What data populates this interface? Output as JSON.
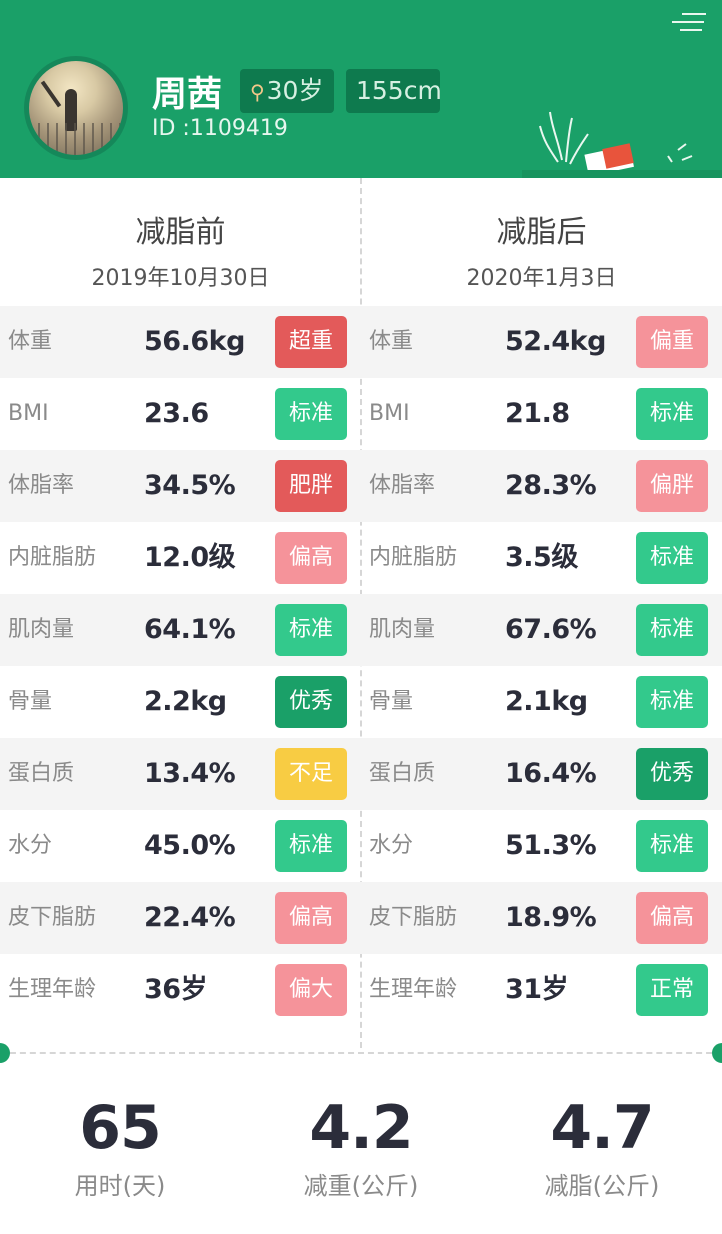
{
  "profile": {
    "name": "周茜",
    "age": "30岁",
    "height": "155cm",
    "id": "ID :1109419"
  },
  "before": {
    "title": "减脂前",
    "date": "2019年10月30日"
  },
  "after": {
    "title": "减脂后",
    "date": "2020年1月3日"
  },
  "rows": [
    {
      "metric": "体重",
      "before": {
        "value": "56.6kg",
        "status": "超重",
        "level": "red"
      },
      "after": {
        "value": "52.4kg",
        "status": "偏重",
        "level": "pink"
      }
    },
    {
      "metric": "BMI",
      "before": {
        "value": "23.6",
        "status": "标准",
        "level": "green"
      },
      "after": {
        "value": "21.8",
        "status": "标准",
        "level": "green"
      }
    },
    {
      "metric": "体脂率",
      "before": {
        "value": "34.5%",
        "status": "肥胖",
        "level": "red"
      },
      "after": {
        "value": "28.3%",
        "status": "偏胖",
        "level": "pink"
      }
    },
    {
      "metric": "内脏脂肪",
      "before": {
        "value": "12.0级",
        "status": "偏高",
        "level": "pink"
      },
      "after": {
        "value": "3.5级",
        "status": "标准",
        "level": "green"
      }
    },
    {
      "metric": "肌肉量",
      "before": {
        "value": "64.1%",
        "status": "标准",
        "level": "green"
      },
      "after": {
        "value": "67.6%",
        "status": "标准",
        "level": "green"
      }
    },
    {
      "metric": "骨量",
      "before": {
        "value": "2.2kg",
        "status": "优秀",
        "level": "dgreen"
      },
      "after": {
        "value": "2.1kg",
        "status": "标准",
        "level": "green"
      }
    },
    {
      "metric": "蛋白质",
      "before": {
        "value": "13.4%",
        "status": "不足",
        "level": "yellow"
      },
      "after": {
        "value": "16.4%",
        "status": "优秀",
        "level": "dgreen"
      }
    },
    {
      "metric": "水分",
      "before": {
        "value": "45.0%",
        "status": "标准",
        "level": "green"
      },
      "after": {
        "value": "51.3%",
        "status": "标准",
        "level": "green"
      }
    },
    {
      "metric": "皮下脂肪",
      "before": {
        "value": "22.4%",
        "status": "偏高",
        "level": "pink"
      },
      "after": {
        "value": "18.9%",
        "status": "偏高",
        "level": "pink"
      }
    },
    {
      "metric": "生理年龄",
      "before": {
        "value": "36岁",
        "status": "偏大",
        "level": "pink"
      },
      "after": {
        "value": "31岁",
        "status": "正常",
        "level": "green"
      }
    }
  ],
  "summary": [
    {
      "value": "65",
      "label": "用时(天)"
    },
    {
      "value": "4.2",
      "label": "减重(公斤)"
    },
    {
      "value": "4.7",
      "label": "减脂(公斤)"
    }
  ],
  "colors": {
    "brand_green": "#1aa068",
    "badge_red": "#e35a5a",
    "badge_pink": "#f5939a",
    "badge_green": "#33c98c",
    "badge_dark_green": "#1aa068",
    "badge_yellow": "#f8cc43"
  },
  "icons": {
    "gender": "female-icon",
    "decoration": "plant-and-book-illustration"
  }
}
